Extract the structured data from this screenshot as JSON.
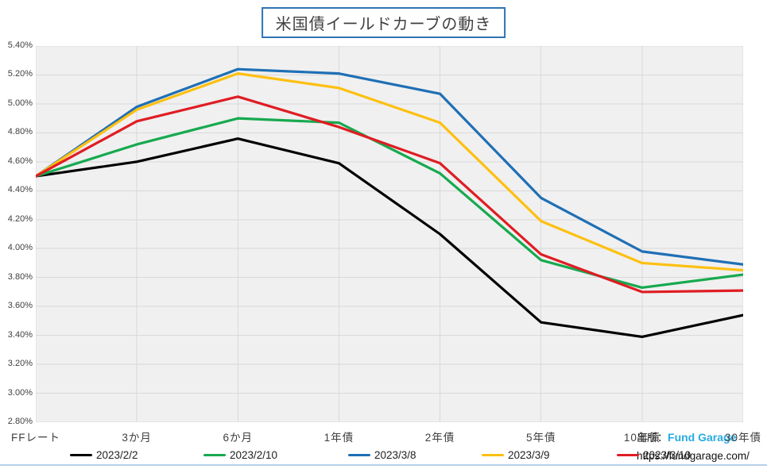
{
  "title": "米国債イールドカーブの動き",
  "source": {
    "label": "出所：",
    "brand": "Fund Garage",
    "brand_color": "#29abe2",
    "url": "https://fundgarage.com/"
  },
  "chart_data": {
    "type": "line",
    "title": "米国債イールドカーブの動き",
    "xlabel": "",
    "ylabel": "",
    "categories": [
      "FFレート",
      "3か月",
      "6か月",
      "1年債",
      "2年債",
      "5年債",
      "10年債",
      "30年債"
    ],
    "series": [
      {
        "name": "2023/2/2",
        "color": "#000000",
        "values": [
          4.5,
          4.6,
          4.76,
          4.59,
          4.1,
          3.49,
          3.39,
          3.54
        ]
      },
      {
        "name": "2023/2/10",
        "color": "#17a94f",
        "values": [
          4.5,
          4.72,
          4.9,
          4.87,
          4.52,
          3.92,
          3.73,
          3.82
        ]
      },
      {
        "name": "2023/3/8",
        "color": "#1f6fb5",
        "values": [
          4.5,
          4.98,
          5.24,
          5.21,
          5.07,
          4.35,
          3.98,
          3.89
        ]
      },
      {
        "name": "2023/3/9",
        "color": "#fdc011",
        "values": [
          4.5,
          4.96,
          5.21,
          5.11,
          4.87,
          4.19,
          3.9,
          3.85
        ]
      },
      {
        "name": "2023/3/10",
        "color": "#df1d23",
        "values": [
          4.5,
          4.88,
          5.05,
          4.84,
          4.59,
          3.96,
          3.7,
          3.71
        ]
      }
    ],
    "ylim": [
      2.8,
      5.4
    ],
    "y_tick_step": 0.2,
    "y_tick_labels": [
      "5.40%",
      "5.20%",
      "5.00%",
      "4.80%",
      "4.60%",
      "4.40%",
      "4.20%",
      "4.00%",
      "3.80%",
      "3.60%",
      "3.40%",
      "3.20%",
      "3.00%",
      "2.80%"
    ],
    "grid": true,
    "grid_color": "#d9d9d9",
    "plot_bg": "#f0f0f0",
    "legend_position": "bottom"
  }
}
